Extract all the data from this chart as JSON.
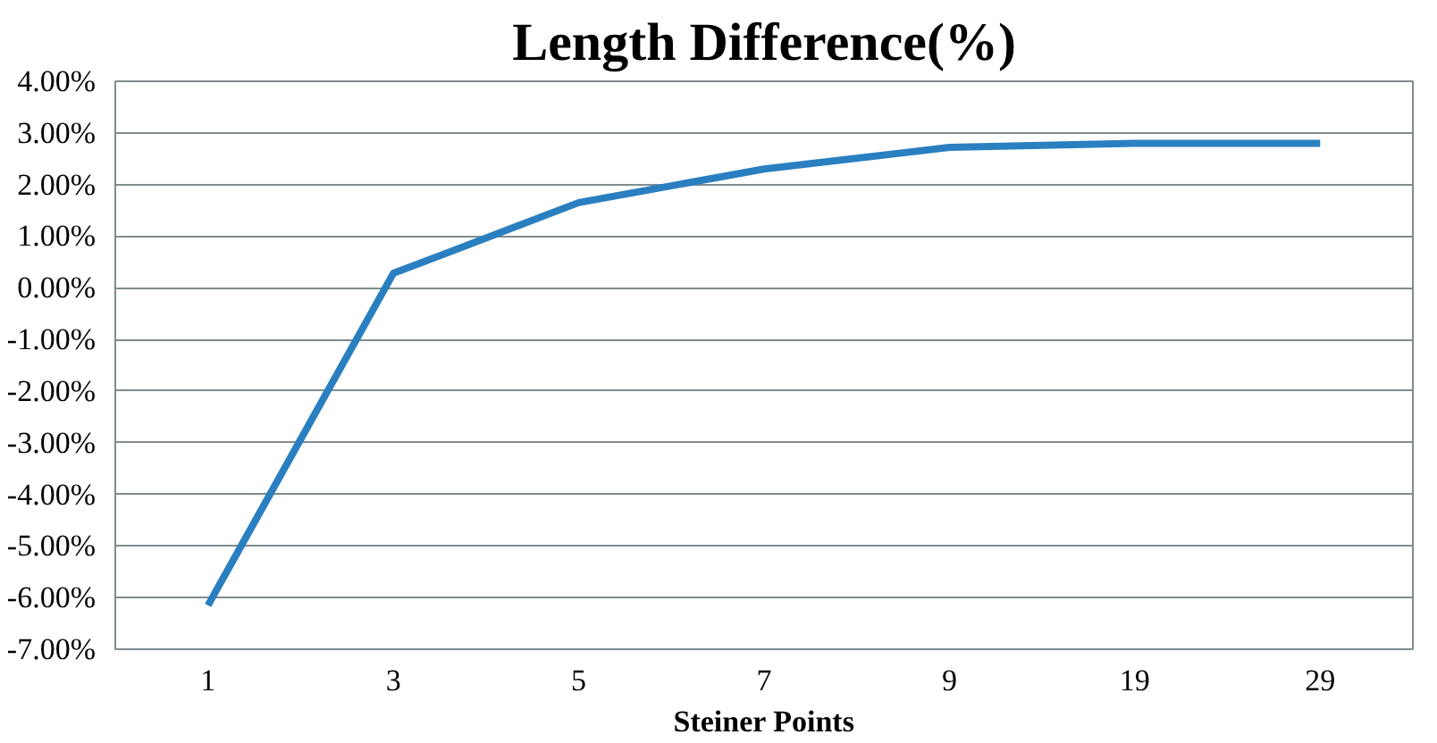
{
  "chart_data": {
    "type": "line",
    "title": "Length Difference(%)",
    "xlabel": "Steiner Points",
    "categories": [
      "1",
      "3",
      "5",
      "7",
      "9",
      "19",
      "29"
    ],
    "series": [
      {
        "color": "#2a7fc0",
        "values": [
          -6.15,
          0.28,
          1.65,
          2.3,
          2.72,
          2.8,
          2.8
        ]
      }
    ],
    "ylim": [
      -7,
      4
    ],
    "yticks": [
      {
        "value": -7,
        "label": "-7.00%"
      },
      {
        "value": -6,
        "label": "-6.00%"
      },
      {
        "value": -5,
        "label": "-5.00%"
      },
      {
        "value": -4,
        "label": "-4.00%"
      },
      {
        "value": -3,
        "label": "-3.00%"
      },
      {
        "value": -2,
        "label": "-2.00%"
      },
      {
        "value": -1,
        "label": "-1.00%"
      },
      {
        "value": 0,
        "label": "0.00%"
      },
      {
        "value": 1,
        "label": "1.00%"
      },
      {
        "value": 2,
        "label": "2.00%"
      },
      {
        "value": 3,
        "label": "3.00%"
      },
      {
        "value": 4,
        "label": "4.00%"
      }
    ],
    "grid": "y",
    "marker": "none",
    "line_style": "solid"
  }
}
